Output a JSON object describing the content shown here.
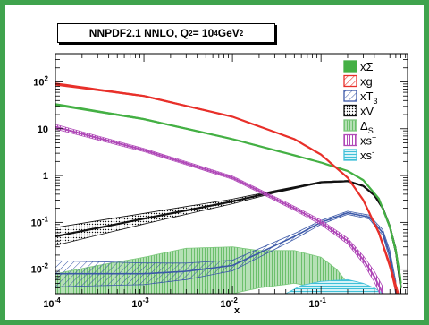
{
  "title": {
    "main": "NNPDF2.1 NNLO, Q",
    "sup1": "2",
    "mid": " = 10",
    "sup2": "4",
    "unit": " GeV",
    "sup3": "2"
  },
  "colors": {
    "frame": "#3fa34d",
    "xSigma": "#44b044",
    "xg": "#e8302a",
    "xT3": "#3b58a8",
    "xV": "#111111",
    "DeltaS": "#7cc87c",
    "xsplus": "#b04ab8",
    "xsminus": "#40c0d8"
  },
  "legend": [
    {
      "key": "xSigma",
      "label": "xΣ",
      "sub": "",
      "sup": "",
      "pattern": "solid"
    },
    {
      "key": "xg",
      "label": "xg",
      "sub": "",
      "sup": "",
      "pattern": "hatch-diag"
    },
    {
      "key": "xT3",
      "label": "xT",
      "sub": "3",
      "sup": "",
      "pattern": "hatch-diag"
    },
    {
      "key": "xV",
      "label": "xV",
      "sub": "",
      "sup": "",
      "pattern": "dots"
    },
    {
      "key": "DeltaS",
      "label": "Δ",
      "sub": "S",
      "sup": "",
      "pattern": "vlines"
    },
    {
      "key": "xsplus",
      "label": "xs",
      "sub": "",
      "sup": "+",
      "pattern": "vlines"
    },
    {
      "key": "xsminus",
      "label": "xs",
      "sub": "",
      "sup": "-",
      "pattern": "hlines"
    }
  ],
  "chart_data": {
    "type": "area",
    "xscale": "log",
    "yscale": "log",
    "xlabel": "x",
    "xlim": [
      0.0001,
      0.95
    ],
    "ylim": [
      0.003,
      400
    ],
    "xticks": [
      {
        "base": "10",
        "exp": "-4",
        "value": 0.0001
      },
      {
        "base": "10",
        "exp": "-3",
        "value": 0.001
      },
      {
        "base": "10",
        "exp": "-2",
        "value": 0.01
      },
      {
        "base": "10",
        "exp": "-1",
        "value": 0.1
      }
    ],
    "yticks": [
      {
        "base": "10",
        "exp": "-2",
        "value": 0.01
      },
      {
        "base": "10",
        "exp": "-1",
        "value": 0.1
      },
      {
        "base": "1",
        "exp": "",
        "value": 1
      },
      {
        "base": "10",
        "exp": "",
        "value": 10
      },
      {
        "base": "10",
        "exp": "2",
        "value": 100
      }
    ],
    "grid": false,
    "legend_position": "top-right",
    "series": [
      {
        "key": "xg",
        "x": [
          0.0001,
          0.001,
          0.01,
          0.05,
          0.1,
          0.2,
          0.3,
          0.45,
          0.6,
          0.75
        ],
        "y": [
          90,
          50,
          18,
          6,
          2.8,
          0.9,
          0.3,
          0.06,
          0.012,
          0.0025
        ],
        "rel_band": [
          0.06,
          0.03,
          0.02,
          0.02,
          0.02,
          0.03,
          0.04,
          0.08,
          0.15,
          0.3
        ]
      },
      {
        "key": "xSigma",
        "x": [
          0.0001,
          0.001,
          0.01,
          0.05,
          0.1,
          0.2,
          0.3,
          0.45,
          0.6,
          0.7,
          0.8
        ],
        "y": [
          33,
          16,
          6,
          2.7,
          1.9,
          1.25,
          0.8,
          0.32,
          0.08,
          0.025,
          0.005
        ],
        "rel_band": [
          0.05,
          0.03,
          0.02,
          0.02,
          0.02,
          0.02,
          0.03,
          0.04,
          0.08,
          0.15,
          0.3
        ]
      },
      {
        "key": "xV",
        "x": [
          0.0001,
          0.001,
          0.01,
          0.03,
          0.1,
          0.2,
          0.3,
          0.4,
          0.5,
          0.6,
          0.7,
          0.8
        ],
        "y": [
          0.05,
          0.12,
          0.28,
          0.45,
          0.72,
          0.76,
          0.6,
          0.38,
          0.2,
          0.08,
          0.025,
          0.004
        ],
        "rel_band": [
          0.55,
          0.3,
          0.12,
          0.06,
          0.03,
          0.03,
          0.03,
          0.04,
          0.06,
          0.1,
          0.2,
          0.3
        ]
      },
      {
        "key": "xT3",
        "x": [
          0.0001,
          0.001,
          0.003,
          0.01,
          0.05,
          0.1,
          0.2,
          0.35,
          0.5,
          0.6,
          0.7
        ],
        "y": [
          0.008,
          0.008,
          0.009,
          0.012,
          0.05,
          0.1,
          0.16,
          0.13,
          0.06,
          0.02,
          0.004
        ],
        "rel_band": [
          0.9,
          0.7,
          0.5,
          0.3,
          0.15,
          0.1,
          0.08,
          0.1,
          0.15,
          0.25,
          0.4
        ]
      },
      {
        "key": "xsplus",
        "x": [
          0.0001,
          0.001,
          0.01,
          0.05,
          0.1,
          0.2,
          0.3,
          0.4,
          0.5
        ],
        "y": [
          11,
          3.5,
          0.9,
          0.2,
          0.1,
          0.04,
          0.016,
          0.007,
          0.003
        ],
        "rel_band": [
          0.12,
          0.08,
          0.08,
          0.1,
          0.12,
          0.15,
          0.2,
          0.3,
          0.4
        ]
      },
      {
        "key": "DeltaS",
        "x": [
          0.0001,
          0.0003,
          0.001,
          0.003,
          0.01,
          0.02,
          0.05,
          0.1,
          0.15,
          0.2
        ],
        "lo": [
          0.003,
          0.003,
          0.003,
          0.003,
          0.003,
          0.004,
          0.005,
          0.004,
          0.003,
          0.003
        ],
        "hi": [
          0.008,
          0.012,
          0.018,
          0.028,
          0.03,
          0.025,
          0.025,
          0.018,
          0.01,
          0.005
        ]
      },
      {
        "key": "xsminus",
        "x": [
          0.04,
          0.06,
          0.1,
          0.2,
          0.3,
          0.4,
          0.5
        ],
        "lo": [
          0.003,
          0.003,
          0.003,
          0.003,
          0.003,
          0.003,
          0.003
        ],
        "hi": [
          0.003,
          0.0045,
          0.0055,
          0.006,
          0.005,
          0.004,
          0.003
        ]
      }
    ]
  }
}
